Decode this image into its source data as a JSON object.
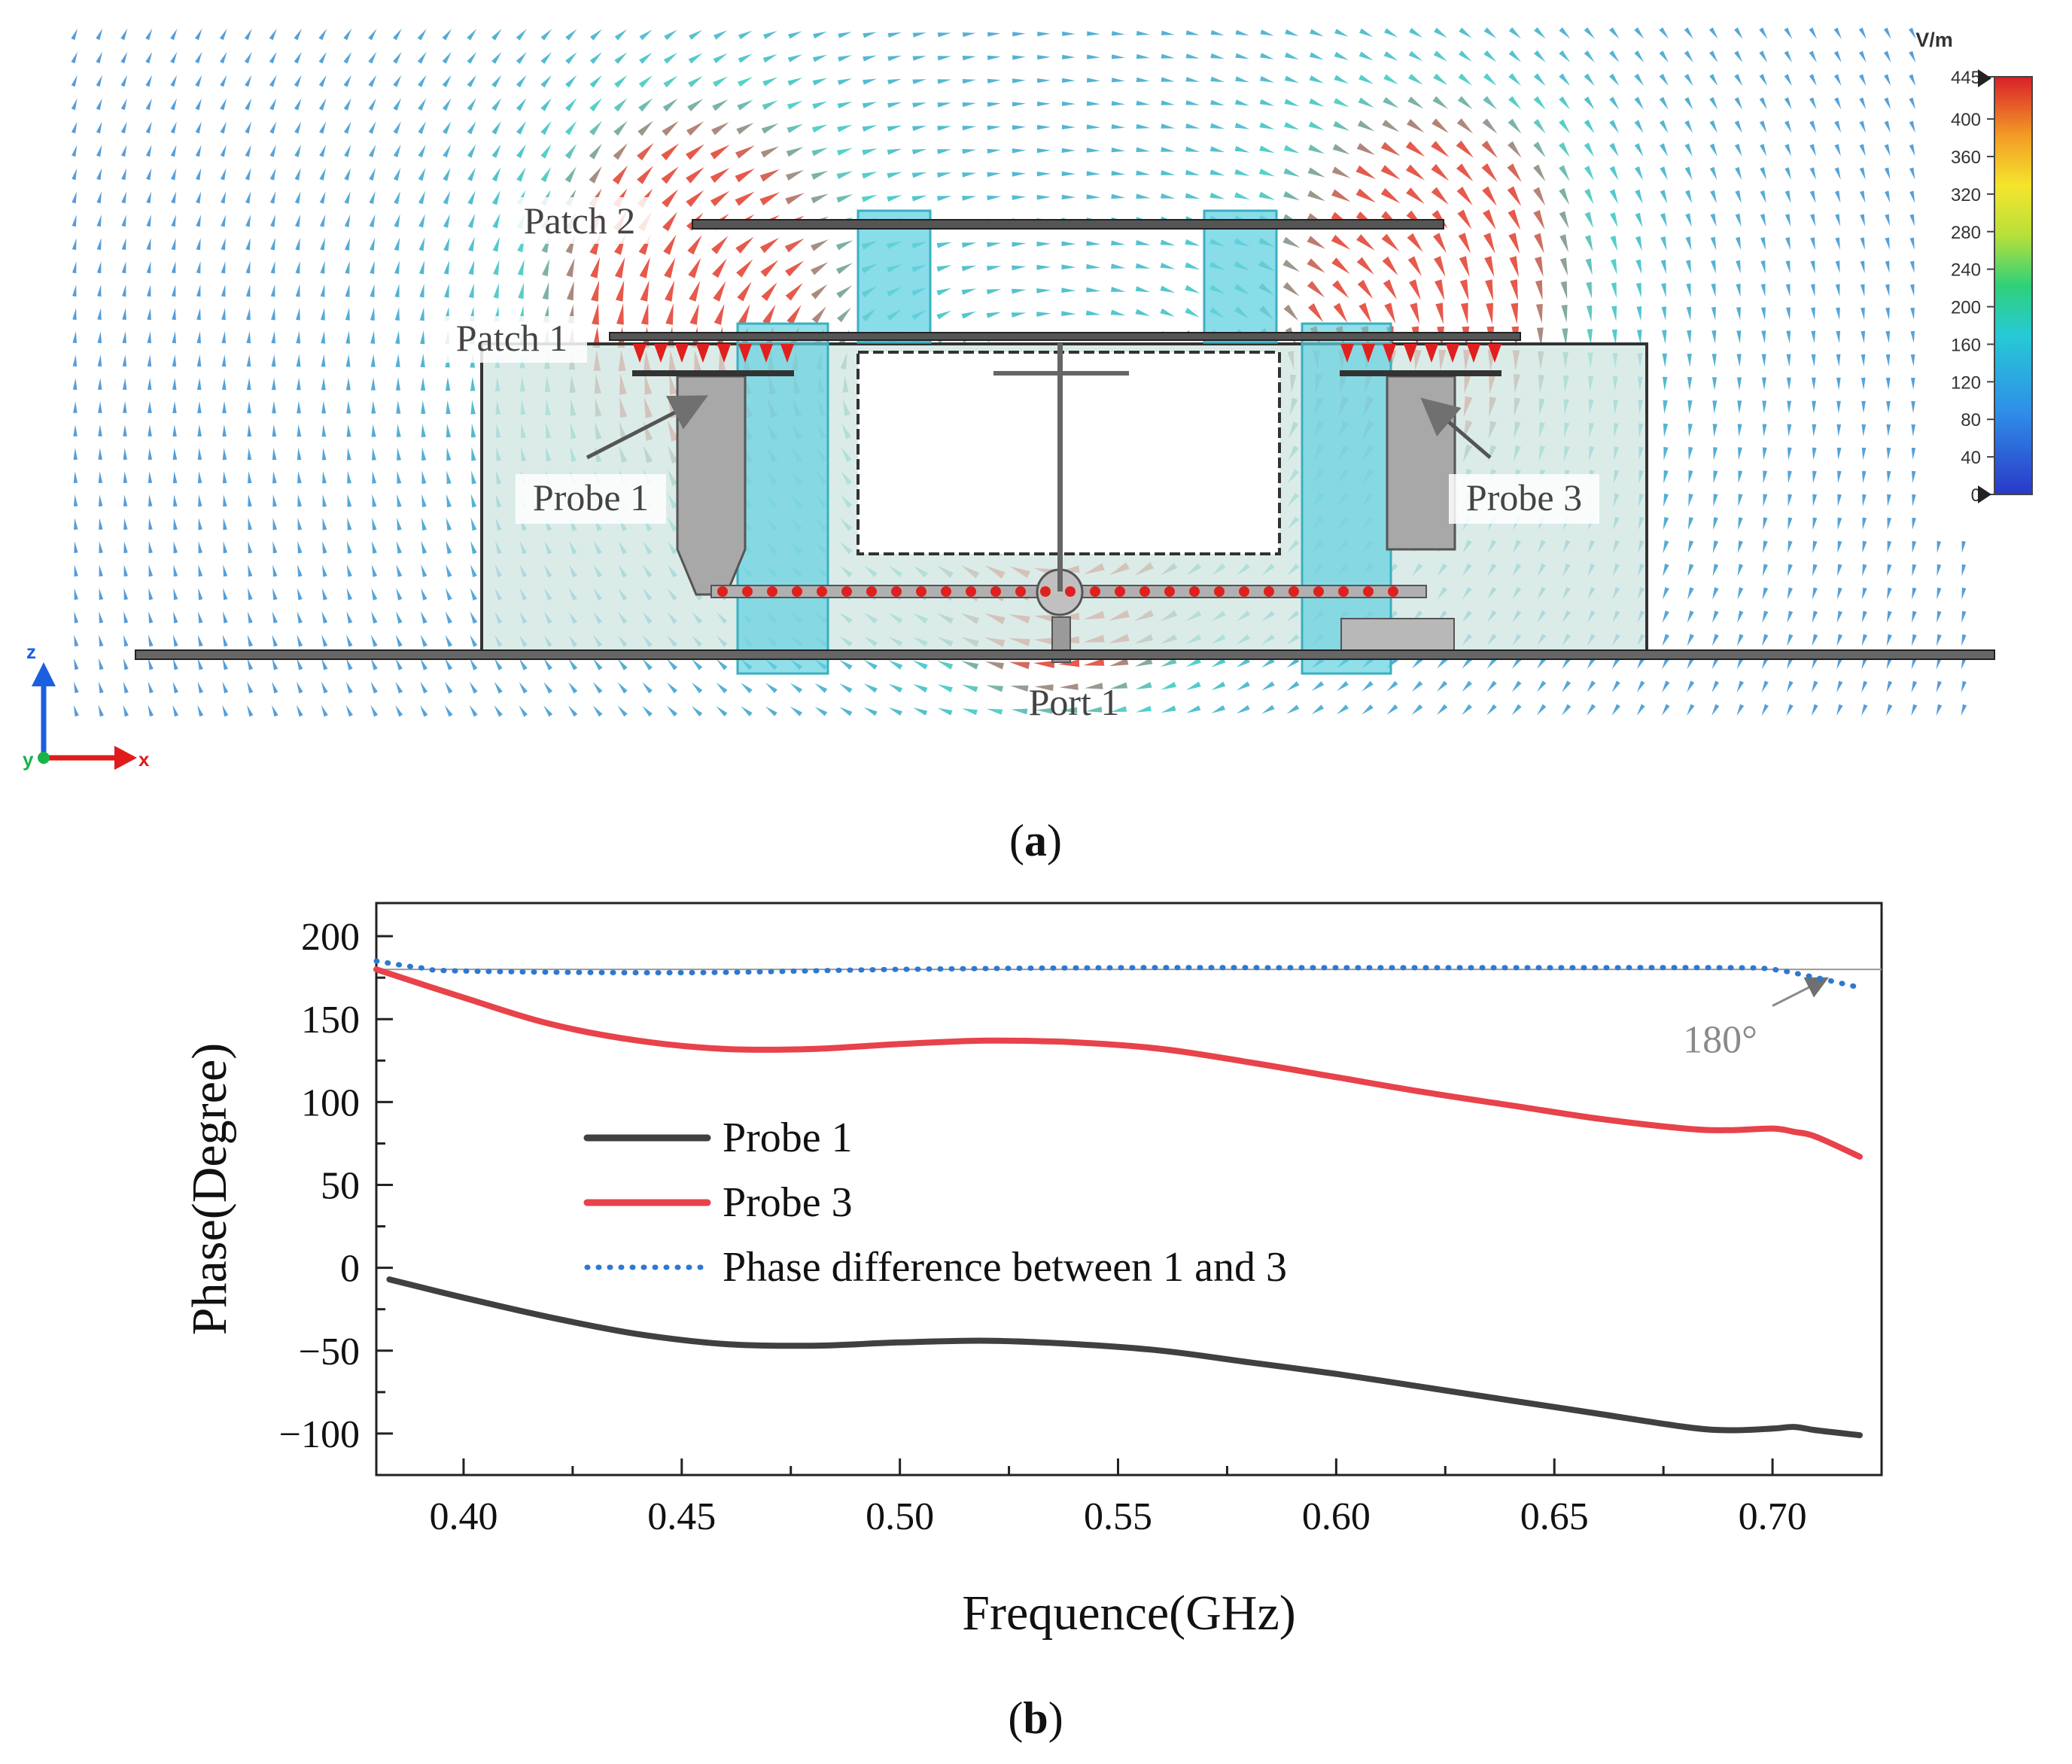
{
  "panel_a": {
    "caption_letter": "a",
    "labels": {
      "patch2": "Patch 2",
      "patch1": "Patch 1",
      "probe1": "Probe 1",
      "probe3": "Probe 3",
      "port1": "Port 1"
    },
    "axes": {
      "z": "z",
      "y": "y",
      "x": "x"
    },
    "colorbar": {
      "unit": "V/m",
      "ticks": [
        "445",
        "400",
        "360",
        "320",
        "280",
        "240",
        "200",
        "160",
        "120",
        "80",
        "40",
        "0"
      ]
    },
    "colors": {
      "field_low": "#2e6fd6",
      "field_high": "#e0301e",
      "enclosure": "#cfe6e0",
      "post": "#62d2e0"
    }
  },
  "panel_b": {
    "caption_letter": "b",
    "chart_data": {
      "type": "line",
      "xlabel": "Frequence(GHz)",
      "ylabel": "Phase(Degree)",
      "xlim": [
        0.38,
        0.725
      ],
      "ylim": [
        -125,
        220
      ],
      "xticks": [
        0.4,
        0.45,
        0.5,
        0.55,
        0.6,
        0.65,
        0.7
      ],
      "xtick_labels": [
        "0.40",
        "0.45",
        "0.50",
        "0.55",
        "0.60",
        "0.65",
        "0.70"
      ],
      "yticks": [
        200,
        150,
        100,
        50,
        0,
        -50,
        -100
      ],
      "ytick_labels": [
        "200",
        "150",
        "100",
        "50",
        "0",
        "−50",
        "−100"
      ],
      "reference_line": {
        "value": 180,
        "label": "180°"
      },
      "legend_position": "center-left",
      "series": [
        {
          "name": "Probe 1",
          "color": "#404040",
          "style": "solid",
          "x": [
            0.383,
            0.4,
            0.42,
            0.44,
            0.46,
            0.48,
            0.5,
            0.52,
            0.54,
            0.56,
            0.58,
            0.6,
            0.62,
            0.64,
            0.66,
            0.68,
            0.69,
            0.7,
            0.705,
            0.71,
            0.72
          ],
          "y": [
            -7,
            -18,
            -30,
            -40,
            -46,
            -47,
            -45,
            -44,
            -46,
            -50,
            -57,
            -64,
            -72,
            -80,
            -88,
            -96,
            -98,
            -97,
            -96,
            -98,
            -101
          ]
        },
        {
          "name": "Probe 3",
          "color": "#e8424a",
          "style": "solid",
          "x": [
            0.38,
            0.4,
            0.42,
            0.44,
            0.46,
            0.48,
            0.5,
            0.52,
            0.54,
            0.56,
            0.58,
            0.6,
            0.62,
            0.64,
            0.66,
            0.68,
            0.69,
            0.7,
            0.705,
            0.71,
            0.72
          ],
          "y": [
            180,
            163,
            147,
            137,
            132,
            132,
            135,
            137,
            136,
            132,
            124,
            115,
            106,
            98,
            90,
            84,
            83,
            84,
            82,
            79,
            67
          ]
        },
        {
          "name": "Phase difference between 1 and 3",
          "color": "#2f78d0",
          "style": "dotted",
          "x": [
            0.38,
            0.39,
            0.4,
            0.45,
            0.5,
            0.55,
            0.6,
            0.65,
            0.69,
            0.7,
            0.71,
            0.72
          ],
          "y": [
            185,
            181,
            179,
            178,
            180,
            181,
            181,
            181,
            181,
            180,
            175,
            169
          ]
        }
      ]
    }
  }
}
